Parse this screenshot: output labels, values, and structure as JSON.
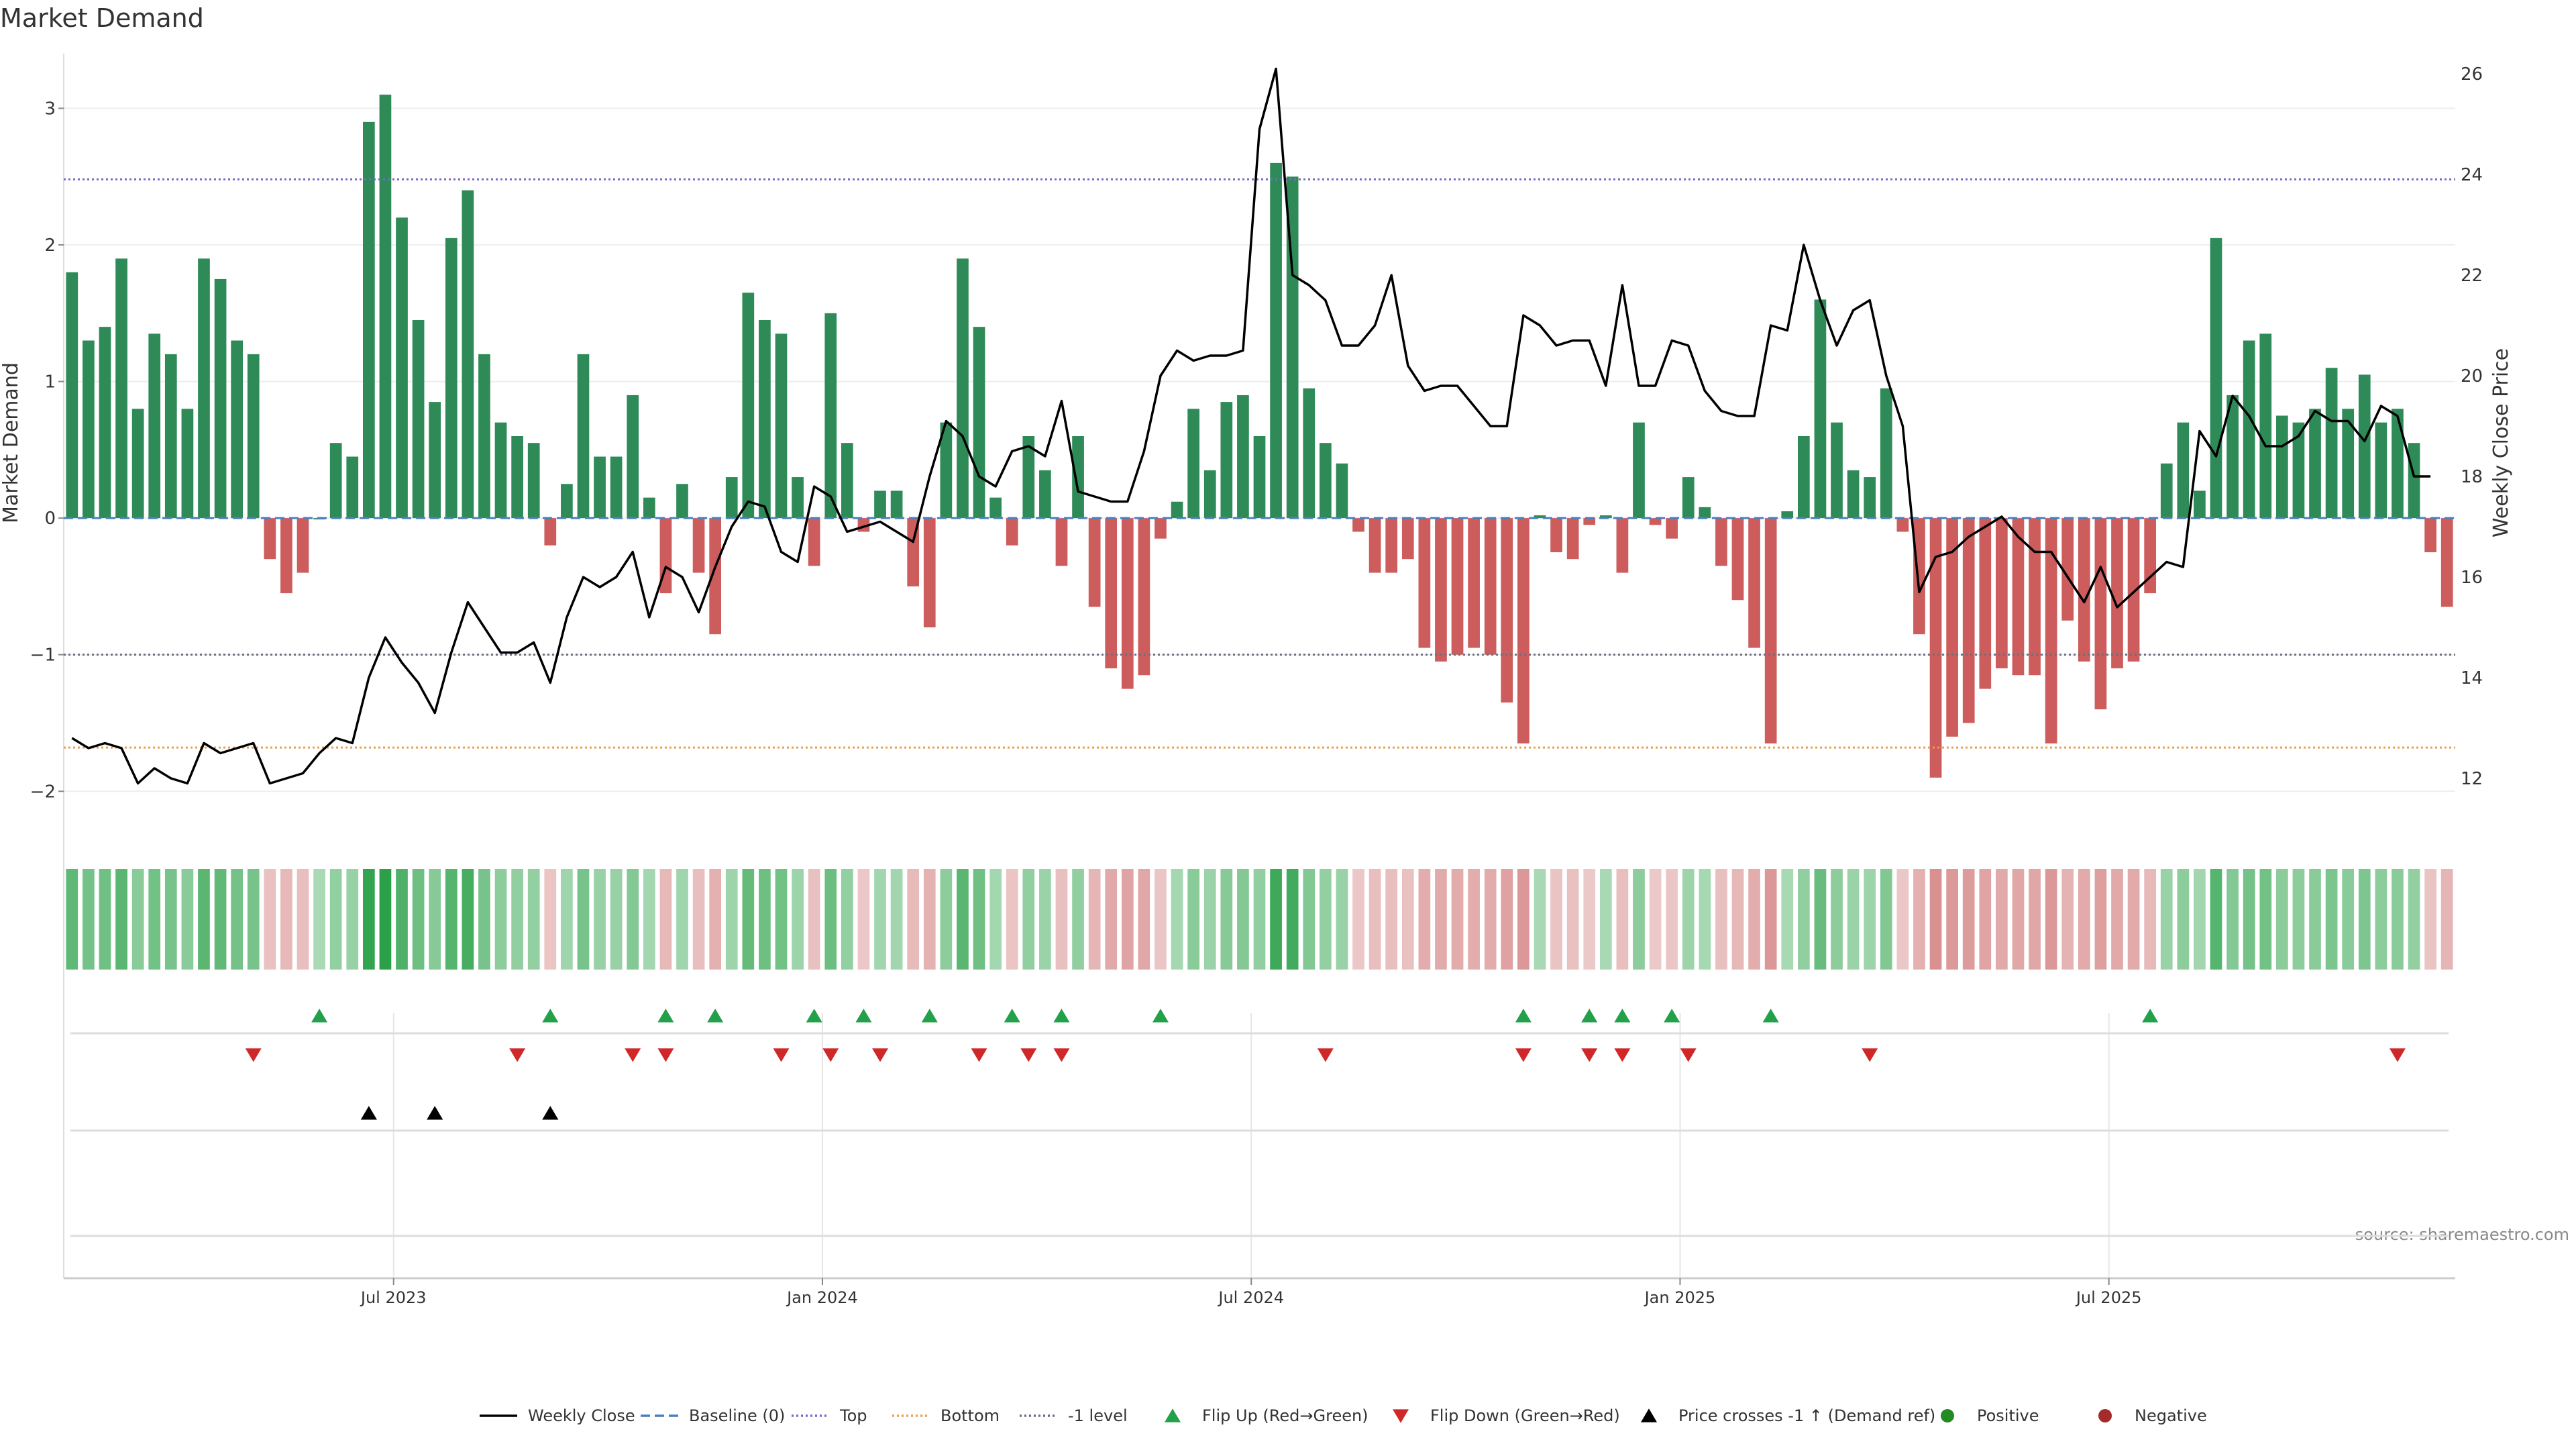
{
  "chart_data": {
    "type": "bar",
    "title": "Market Demand",
    "ylabel": "Market Demand",
    "y2label": "Weekly Close Price",
    "source": "source: sharemaestro.com",
    "ylim": [
      -2.2,
      3.4
    ],
    "y2lim": [
      11.2,
      26.4
    ],
    "yticks": [
      3,
      2,
      1,
      0,
      -1,
      -2
    ],
    "ytick_labels": [
      "3",
      "2",
      "1",
      "0",
      "−1",
      "−2"
    ],
    "y2ticks": [
      26,
      24,
      22,
      20,
      18,
      16,
      14,
      12
    ],
    "y2tick_labels": [
      "26",
      "24",
      "22",
      "20",
      "18",
      "16",
      "14",
      "12"
    ],
    "xticks": [
      "Jul 2023",
      "Jan 2024",
      "Jul 2024",
      "Jan 2025",
      "Jul 2025"
    ],
    "reference_lines": {
      "top": 2.48,
      "bottom": -1.68,
      "minus_one": -1.0,
      "baseline": 0
    },
    "colors": {
      "positive": "#2e8b57",
      "negative": "#cd5c5c",
      "price": "#000000",
      "top": "#7b68c8",
      "bottom": "#e8a050",
      "minus_one": "#6e6e80",
      "baseline": "#4a7fc0",
      "flip_up": "#22a04a",
      "flip_down": "#d02828",
      "cross": "#000000"
    },
    "demand": [
      1.8,
      1.3,
      1.4,
      1.9,
      0.8,
      1.35,
      1.2,
      0.8,
      1.9,
      1.75,
      1.3,
      1.2,
      -0.3,
      -0.55,
      -0.4,
      0.0,
      0.55,
      0.45,
      2.9,
      3.1,
      2.2,
      1.45,
      0.85,
      2.05,
      2.4,
      1.2,
      0.7,
      0.6,
      0.55,
      -0.2,
      0.25,
      1.2,
      0.45,
      0.45,
      0.9,
      0.15,
      -0.55,
      0.25,
      -0.4,
      -0.85,
      0.3,
      1.65,
      1.45,
      1.35,
      0.3,
      -0.35,
      1.5,
      0.55,
      -0.1,
      0.2,
      0.2,
      -0.5,
      -0.8,
      0.7,
      1.9,
      1.4,
      0.15,
      -0.2,
      0.6,
      0.35,
      -0.35,
      0.6,
      -0.65,
      -1.1,
      -1.25,
      -1.15,
      -0.15,
      0.12,
      0.8,
      0.35,
      0.85,
      0.9,
      0.6,
      2.6,
      2.5,
      0.95,
      0.55,
      0.4,
      -0.1,
      -0.4,
      -0.4,
      -0.3,
      -0.95,
      -1.05,
      -1.0,
      -0.95,
      -1.0,
      -1.35,
      -1.65,
      0.02,
      -0.25,
      -0.3,
      -0.05,
      0.02,
      -0.4,
      0.7,
      -0.05,
      -0.15,
      0.3,
      0.08,
      -0.35,
      -0.6,
      -0.95,
      -1.65,
      0.05,
      0.6,
      1.6,
      0.7,
      0.35,
      0.3,
      0.95,
      -0.1,
      -0.85,
      -1.9,
      -1.6,
      -1.5,
      -1.25,
      -1.1,
      -1.15,
      -1.15,
      -1.65,
      -0.75,
      -1.05,
      -1.4,
      -1.1,
      -1.05,
      -0.55,
      0.4,
      0.7,
      0.2,
      2.05,
      0.9,
      1.3,
      1.35,
      0.75,
      0.7,
      0.8,
      1.1,
      0.8,
      1.05,
      0.7,
      0.8,
      0.55,
      -0.25,
      -0.65
    ],
    "price": [
      12.8,
      12.6,
      12.7,
      12.6,
      11.9,
      12.2,
      12.0,
      11.9,
      12.7,
      12.5,
      12.6,
      12.7,
      11.9,
      12.0,
      12.1,
      12.5,
      12.8,
      12.7,
      14.0,
      14.8,
      14.3,
      13.9,
      13.3,
      14.5,
      15.5,
      15.0,
      14.5,
      14.5,
      14.7,
      13.9,
      15.2,
      16.0,
      15.8,
      16.0,
      16.5,
      15.2,
      16.2,
      16.0,
      15.3,
      16.2,
      17.0,
      17.5,
      17.4,
      16.5,
      16.3,
      17.8,
      17.6,
      16.9,
      17.0,
      17.1,
      16.9,
      16.7,
      18.0,
      19.1,
      18.8,
      18.0,
      17.8,
      18.5,
      18.6,
      18.4,
      19.5,
      17.7,
      17.6,
      17.5,
      17.5,
      18.5,
      20.0,
      20.5,
      20.3,
      20.4,
      20.4,
      20.5,
      24.9,
      26.1,
      22.0,
      21.8,
      21.5,
      20.6,
      20.6,
      21.0,
      22.0,
      20.2,
      19.7,
      19.8,
      19.8,
      19.4,
      19.0,
      19.0,
      21.2,
      21.0,
      20.6,
      20.7,
      20.7,
      19.8,
      21.8,
      19.8,
      19.8,
      20.7,
      20.6,
      19.7,
      19.3,
      19.2,
      19.2,
      21.0,
      20.9,
      22.6,
      21.5,
      20.6,
      21.3,
      21.5,
      20.0,
      19.0,
      15.7,
      16.4,
      16.5,
      16.8,
      17.0,
      17.2,
      16.8,
      16.5,
      16.5,
      16.0,
      15.5,
      16.2,
      15.4,
      15.7,
      16.0,
      16.3,
      16.2,
      18.9,
      18.4,
      19.6,
      19.2,
      18.6,
      18.6,
      18.8,
      19.3,
      19.1,
      19.1,
      18.7,
      19.4,
      19.2,
      18.0,
      18.0
    ],
    "flip_up_x": [
      15.5,
      29.5,
      36.5,
      39.5,
      45.5,
      48.5,
      52.5,
      57.5,
      60.5,
      66.5,
      88.5,
      92.5,
      94.5,
      97.5,
      103.5,
      126.5
    ],
    "flip_down_x": [
      11.5,
      27.5,
      34.5,
      36.5,
      43.5,
      46.5,
      49.5,
      55.5,
      58.5,
      60.5,
      76.5,
      88.5,
      92.5,
      94.5,
      98.5,
      109.5,
      141.5
    ],
    "cross_x": [
      18.5,
      22.5,
      29.5
    ],
    "legend": [
      {
        "kind": "line",
        "label": "Weekly Close",
        "color": "#000000",
        "dash": ""
      },
      {
        "kind": "line",
        "label": "Baseline (0)",
        "color": "#4a7fc0",
        "dash": "14 7"
      },
      {
        "kind": "line",
        "label": "Top",
        "color": "#7b68c8",
        "dash": "3 4"
      },
      {
        "kind": "line",
        "label": "Bottom",
        "color": "#e8a050",
        "dash": "3 4"
      },
      {
        "kind": "line",
        "label": "-1 level",
        "color": "#6e6e80",
        "dash": "3 4"
      },
      {
        "kind": "tri-up",
        "label": "Flip Up (Red→Green)",
        "color": "#22a04a"
      },
      {
        "kind": "tri-down",
        "label": "Flip Down (Green→Red)",
        "color": "#d02828"
      },
      {
        "kind": "tri-up",
        "label": "Price crosses -1 ↑ (Demand ref)",
        "color": "#000000"
      },
      {
        "kind": "dot",
        "label": "Positive",
        "color": "#228b22"
      },
      {
        "kind": "dot",
        "label": "Negative",
        "color": "#a52a2a"
      }
    ]
  }
}
